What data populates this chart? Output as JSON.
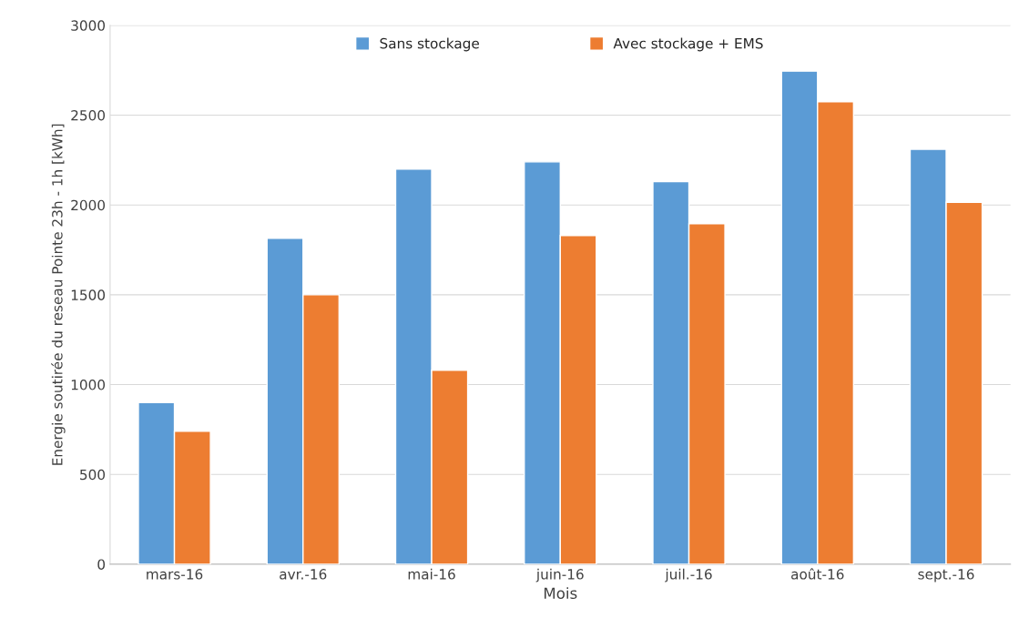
{
  "chart_data": {
    "type": "bar",
    "xlabel": "Mois",
    "ylabel": "Energie soutirée du reseau Pointe 23h - 1h [kWh]",
    "categories": [
      "mars-16",
      "avr.-16",
      "mai-16",
      "juin-16",
      "juil.-16",
      "août-16",
      "sept.-16"
    ],
    "series": [
      {
        "name": "Sans stockage",
        "color": "#5b9bd5",
        "values": [
          900,
          1815,
          2200,
          2240,
          2130,
          2745,
          2310
        ]
      },
      {
        "name": "Avec stockage + EMS",
        "color": "#ed7d31",
        "values": [
          740,
          1500,
          1080,
          1830,
          1895,
          2575,
          2015
        ]
      }
    ],
    "ylim": [
      0,
      3000
    ],
    "yticks": [
      0,
      500,
      1000,
      1500,
      2000,
      2500,
      3000
    ],
    "grid": "y",
    "legend": "top"
  }
}
